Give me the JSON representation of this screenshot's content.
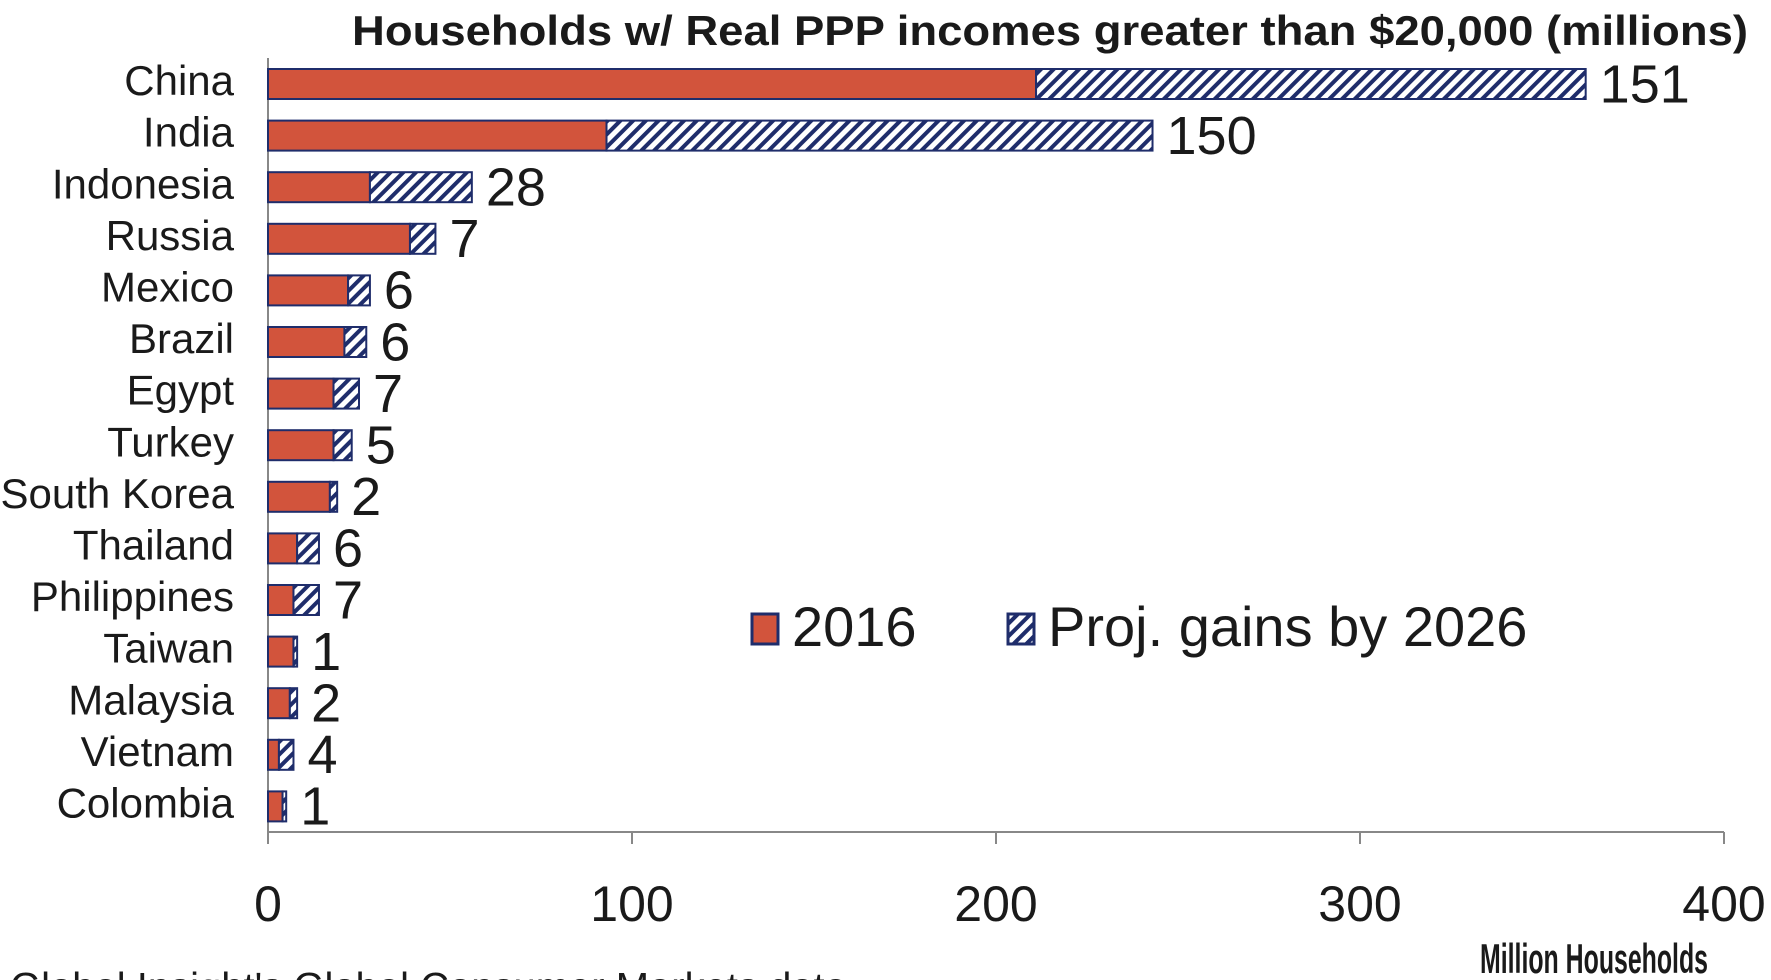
{
  "chart_data": {
    "type": "bar",
    "orientation": "horizontal",
    "stacked": true,
    "title": "Households w/ Real PPP incomes greater than $20,000 (millions)",
    "x_label": "Million Households",
    "source": "Global Insight's Global Consumer Markets data",
    "categories": [
      "China",
      "India",
      "Indonesia",
      "Russia",
      "Mexico",
      "Brazil",
      "Egypt",
      "Turkey",
      "South Korea",
      "Thailand",
      "Philippines",
      "Taiwan",
      "Malaysia",
      "Vietnam",
      "Colombia"
    ],
    "series": [
      {
        "name": "2016",
        "color": "#d2543c",
        "values": [
          211,
          93,
          28,
          39,
          22,
          21,
          18,
          18,
          17,
          8,
          7,
          7,
          6,
          3,
          4
        ]
      },
      {
        "name": "Proj. gains by 2026",
        "color": "#1f2d6b",
        "pattern": "hatch",
        "values": [
          151,
          150,
          28,
          7,
          6,
          6,
          7,
          5,
          2,
          6,
          7,
          1,
          2,
          4,
          1
        ]
      }
    ],
    "data_labels_series": 1,
    "xlim": [
      0,
      400
    ],
    "xticks": [
      0,
      100,
      200,
      300,
      400
    ],
    "grid": false
  }
}
